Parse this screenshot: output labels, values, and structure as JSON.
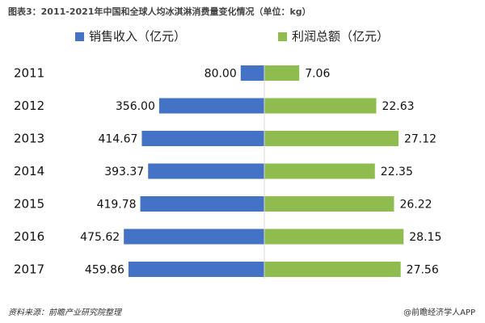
{
  "title": "图表3：2011-2021年中国和全球人均冰淇淋消费量变化情况（单位：kg）",
  "source": "资料来源：前瞻产业研究院整理",
  "credit": "@前瞻经济学人APP",
  "chart_data": {
    "type": "bar",
    "orientation": "horizontal-diverging",
    "categories": [
      "2011",
      "2012",
      "2013",
      "2014",
      "2015",
      "2016",
      "2017"
    ],
    "series": [
      {
        "name": "销售收入（亿元）",
        "color": "#4472c4",
        "side": "left",
        "values": [
          80.0,
          356.0,
          414.67,
          393.37,
          419.78,
          475.62,
          459.86
        ],
        "labels": [
          "80.00",
          "356.00",
          "414.67",
          "393.37",
          "419.78",
          "475.62",
          "459.86"
        ]
      },
      {
        "name": "利润总额（亿元）",
        "color": "#8fbc4e",
        "side": "right",
        "values": [
          7.06,
          22.63,
          27.12,
          22.35,
          26.22,
          28.15,
          27.56
        ],
        "labels": [
          "7.06",
          "22.63",
          "27.12",
          "22.35",
          "26.22",
          "28.15",
          "27.56"
        ]
      }
    ],
    "legend_position": "top",
    "grid": false
  }
}
